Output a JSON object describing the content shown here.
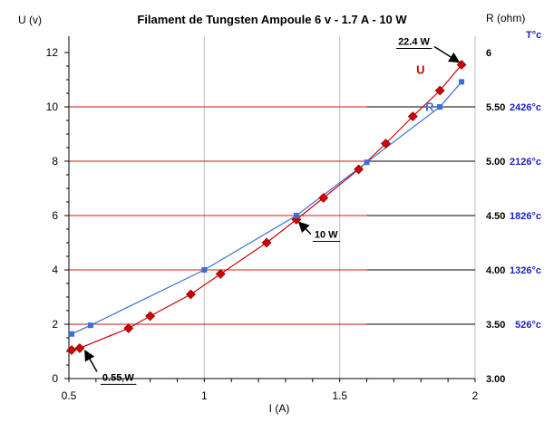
{
  "chart_data": {
    "type": "line",
    "title": "Filament de Tungsten Ampoule 6 v - 1.7 A - 10 W",
    "xlabel": "I (A)",
    "ylabel_left": "U (v)",
    "ylabel_right": "R (ohm)",
    "temp_label": "T°c",
    "xlim": [
      0.5,
      2
    ],
    "ylim_left": [
      0,
      12
    ],
    "ylim_right": [
      3.0,
      6.0
    ],
    "x_ticks": [
      "0.5",
      "1",
      "1.5",
      "2"
    ],
    "y_ticks_left": [
      "0",
      "2",
      "4",
      "6",
      "8",
      "10",
      "12"
    ],
    "y_ticks_right": [
      "3.00",
      "3.50",
      "4.00",
      "4.50",
      "5.00",
      "5.50",
      "6"
    ],
    "temperatures": [
      {
        "r": 3.5,
        "label": "526°c"
      },
      {
        "r": 4.0,
        "label": "1326°c"
      },
      {
        "r": 4.5,
        "label": "1826°c"
      },
      {
        "r": 5.0,
        "label": "2126°c"
      },
      {
        "r": 5.5,
        "label": "2426°c"
      }
    ],
    "series": [
      {
        "name": "U",
        "color": "#cc0000",
        "axis": "left",
        "marker": "diamond",
        "x": [
          0.51,
          0.54,
          0.72,
          0.8,
          0.95,
          1.06,
          1.23,
          1.34,
          1.44,
          1.57,
          1.67,
          1.77,
          1.87,
          1.95
        ],
        "y": [
          1.05,
          1.12,
          1.85,
          2.3,
          3.1,
          3.85,
          5.0,
          5.85,
          6.65,
          7.7,
          8.65,
          9.65,
          10.6,
          11.55
        ]
      },
      {
        "name": "R",
        "color": "#3a6ed8",
        "axis": "right",
        "marker": "square",
        "x": [
          0.51,
          0.58,
          1.0,
          1.34,
          1.6,
          1.87,
          1.95
        ],
        "y": [
          3.41,
          3.49,
          4.0,
          4.5,
          4.99,
          5.5,
          5.73
        ]
      }
    ],
    "annotations": [
      {
        "text": "0.55 W",
        "x": 0.55,
        "y": 1.12
      },
      {
        "text": "10 W",
        "x": 1.34,
        "y": 5.85
      },
      {
        "text": "22.4 W",
        "x": 1.95,
        "y": 11.55
      }
    ],
    "grid": {
      "vertical": true,
      "horizontal_red_to_x": 1.6,
      "horizontal_black_from_x": 1.6
    }
  }
}
